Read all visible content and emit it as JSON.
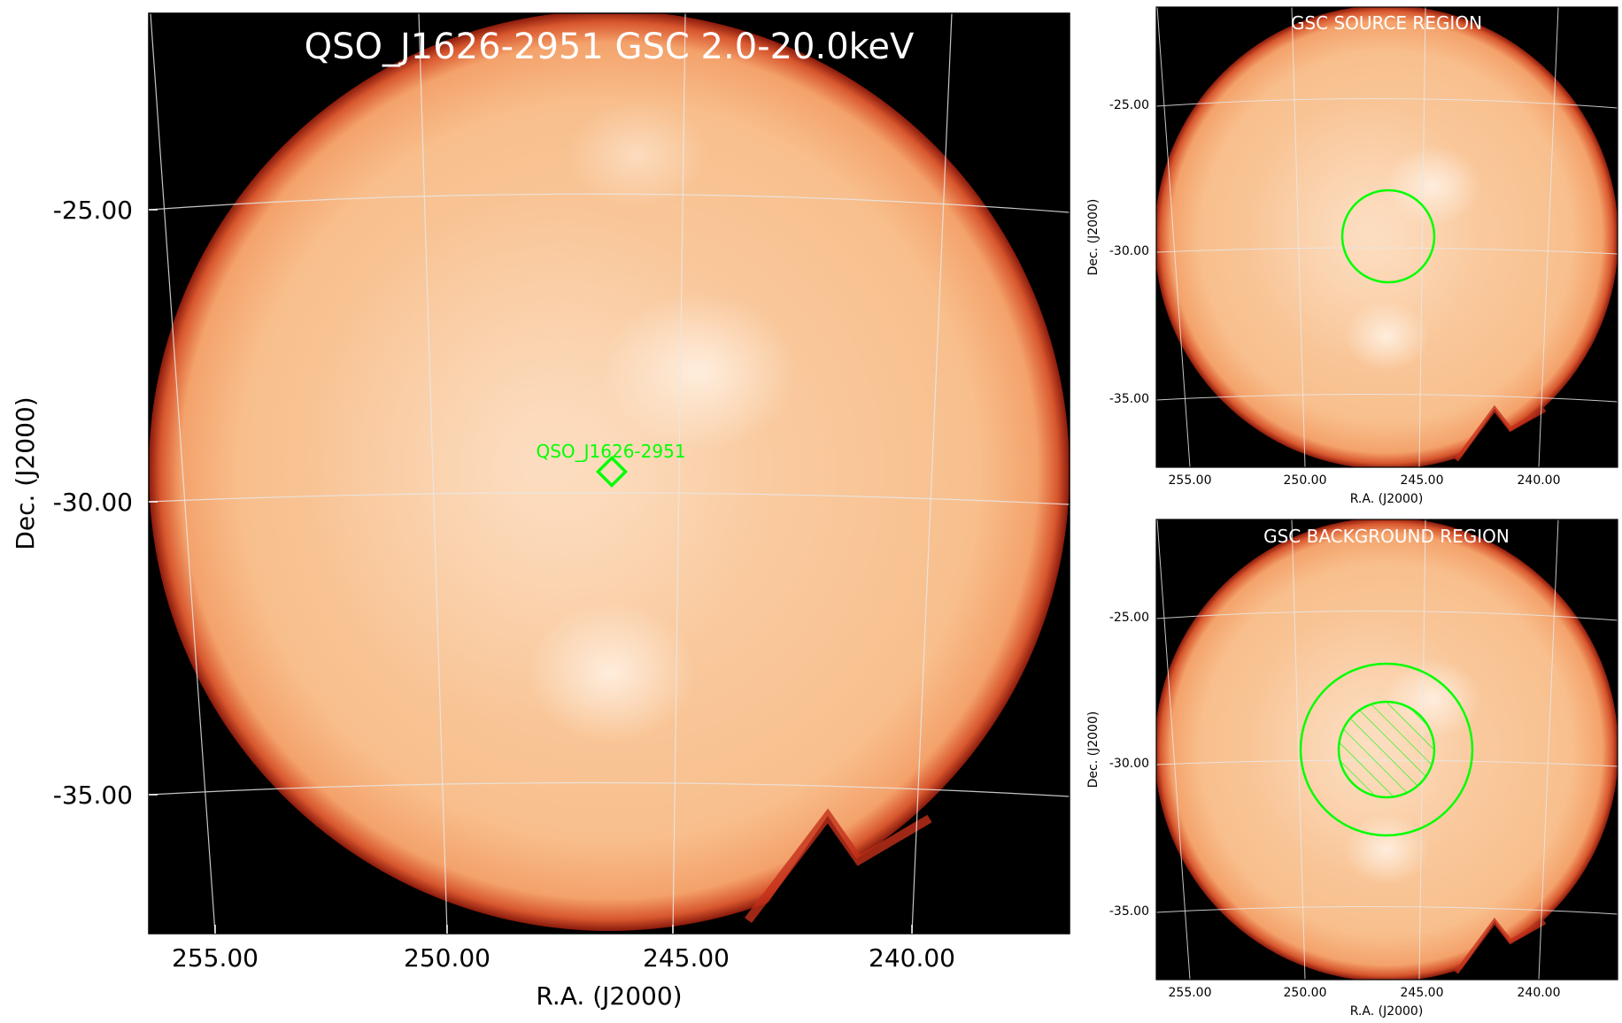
{
  "main": {
    "title": "QSO_J1626-2951 GSC 2.0-20.0keV",
    "source_label": "QSO_J1626-2951",
    "xlabel": "R.A. (J2000)",
    "ylabel": "Dec. (J2000)",
    "xticks": [
      "255.00",
      "250.00",
      "245.00",
      "240.00"
    ],
    "yticks": [
      "-25.00",
      "-30.00",
      "-35.00"
    ]
  },
  "source_panel": {
    "title": "GSC SOURCE REGION",
    "xlabel": "R.A. (J2000)",
    "ylabel": "Dec. (J2000)",
    "xticks": [
      "255.00",
      "250.00",
      "245.00",
      "240.00"
    ],
    "yticks": [
      "-25.00",
      "-30.00",
      "-35.00"
    ]
  },
  "background_panel": {
    "title": "GSC BACKGROUND REGION",
    "xlabel": "R.A. (J2000)",
    "ylabel": "Dec. (J2000)",
    "xticks": [
      "255.00",
      "250.00",
      "245.00",
      "240.00"
    ],
    "yticks": [
      "-25.00",
      "-30.00",
      "-35.00"
    ]
  },
  "colors": {
    "background": "#000000",
    "image_bright": "#fde6cf",
    "image_base": "#f7b07c",
    "image_edge": "#c4301a",
    "region": "#00ff00",
    "grid": "#e8e8e8",
    "title_text": "#ffffff"
  }
}
